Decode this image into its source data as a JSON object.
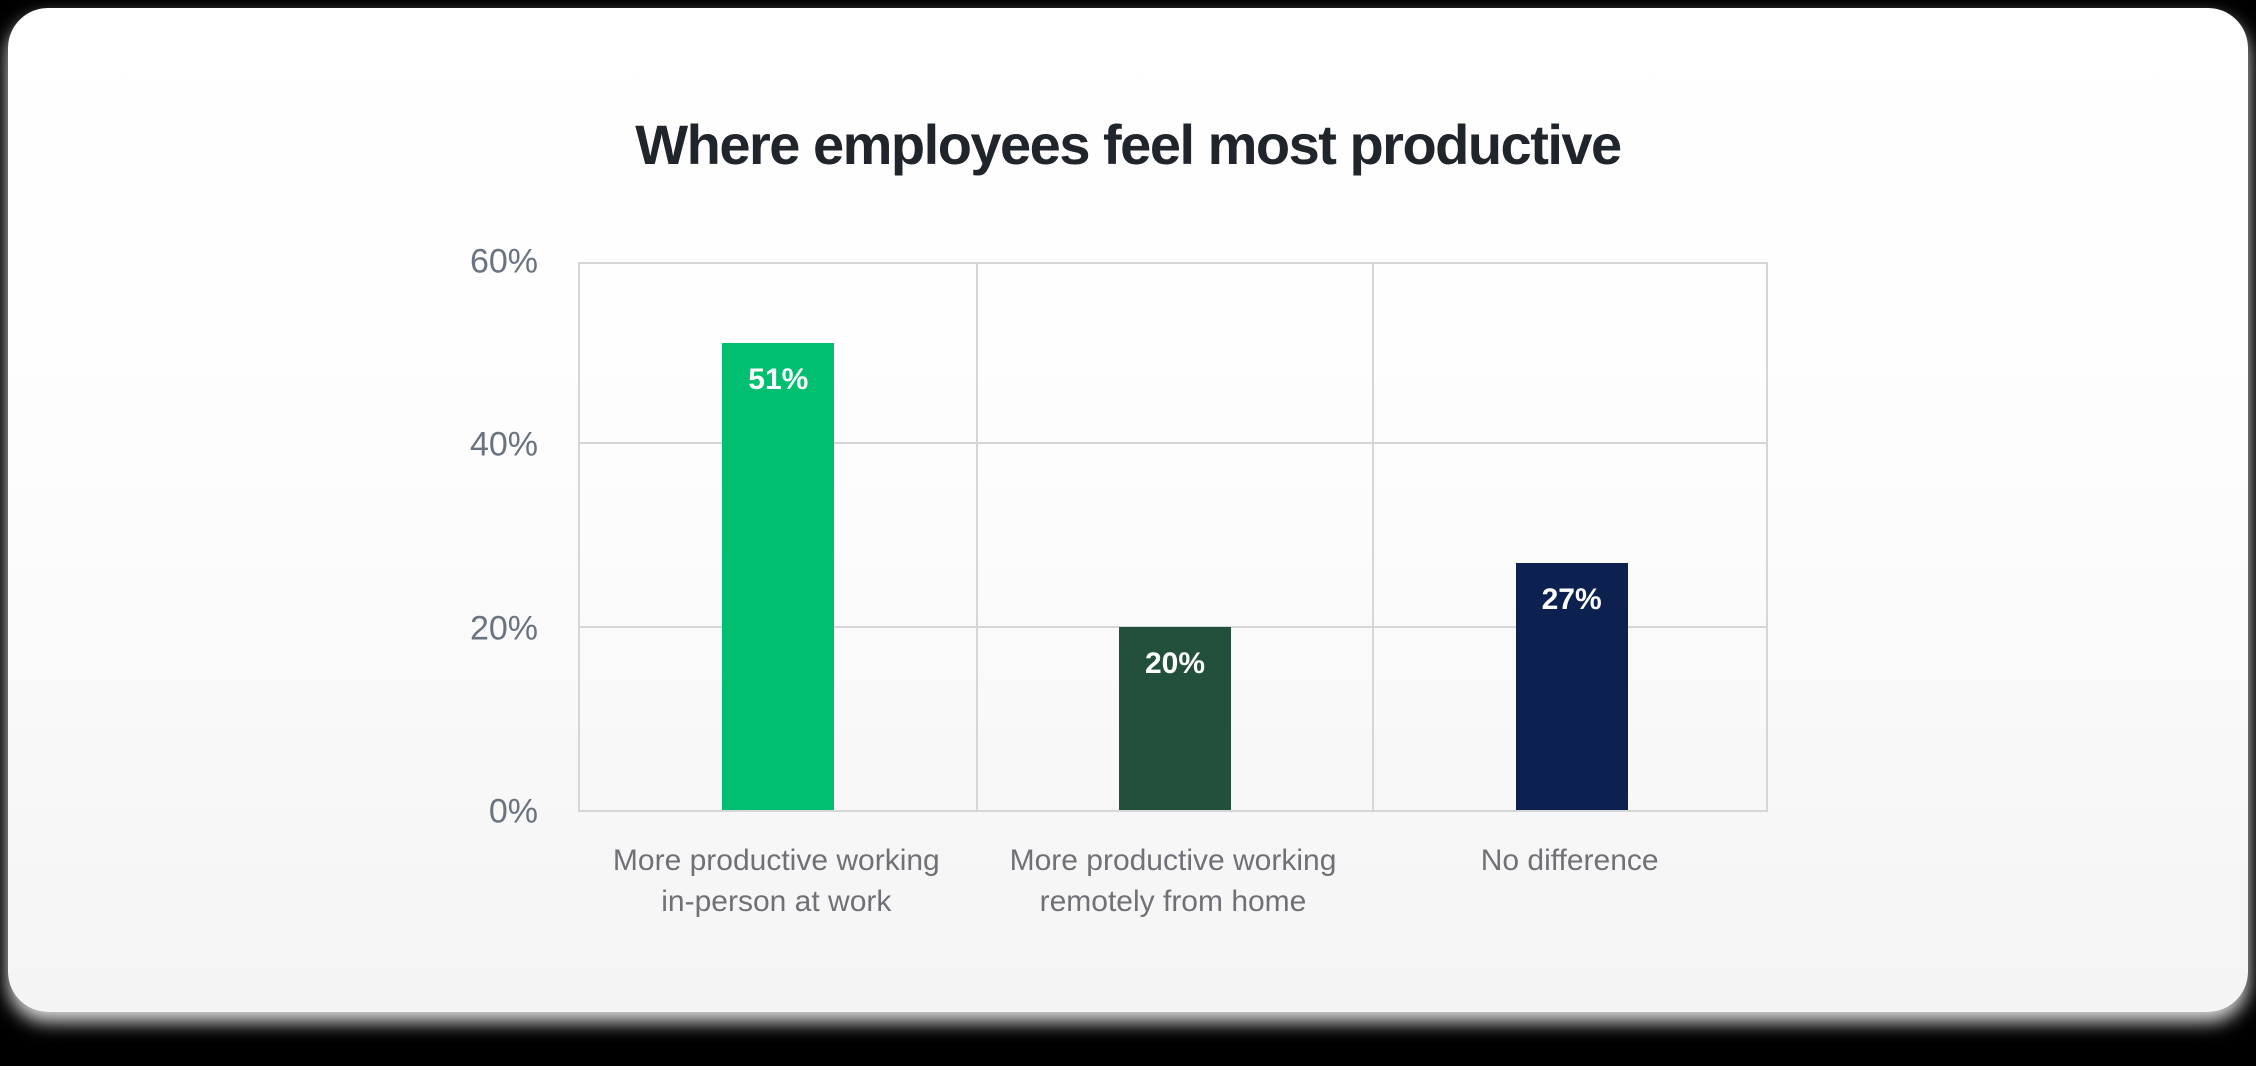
{
  "page": {
    "background": "#000000",
    "card_background_top": "#ffffff",
    "card_background_bottom": "#f4f4f4"
  },
  "chart_data": {
    "type": "bar",
    "title": "Where employees feel most productive",
    "categories": [
      "More productive working in-person at work",
      "More productive working remotely from home",
      "No difference"
    ],
    "values": [
      51,
      20,
      27
    ],
    "value_labels": [
      "51%",
      "20%",
      "27%"
    ],
    "bar_colors": [
      "#00bf70",
      "#23503b",
      "#0c2150"
    ],
    "xlabel": "",
    "ylabel": "",
    "ylim": [
      0,
      60
    ],
    "yticks": [
      0,
      20,
      40,
      60
    ],
    "ytick_labels": [
      "0%",
      "20%",
      "40%",
      "60%"
    ],
    "grid": true,
    "legend": false
  },
  "colors": {
    "grid": "#d5d6d8",
    "tick_label": "#6a7380",
    "category_label": "#6f7177",
    "title_text": "#20242b",
    "bar_label": "#ffffff"
  }
}
